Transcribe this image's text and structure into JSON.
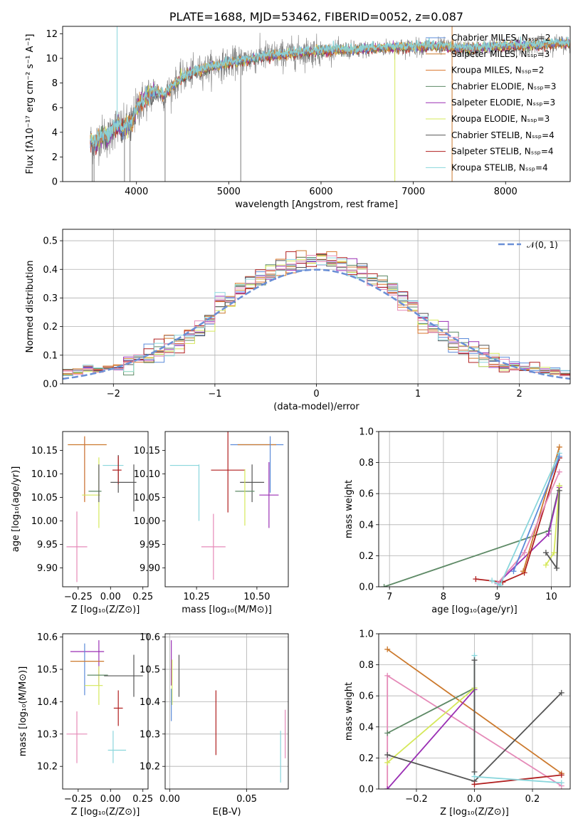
{
  "colors": {
    "chabrier_miles": "#5b8bd9",
    "salpeter_miles": "#cc7a2e",
    "kroupa_miles": "#d9742a",
    "chabrier_elodie": "#5e8a66",
    "salpeter_elodie": "#9a2fb4",
    "kroupa_elodie": "#d5e85a",
    "chabrier_stelib": "#555555",
    "salpeter_stelib": "#b01f1f",
    "kroupa_stelib": "#8ad6dc",
    "pink": "#e58ab8",
    "grid": "#b0b0b0",
    "gauss": "#6a8fd6",
    "spectrum_gray": "#7a7a7a"
  },
  "chart_data": [
    {
      "id": "spectrum",
      "type": "line",
      "title": "PLATE=1688, MJD=53462, FIBERID=0052, z=0.087",
      "xlabel": "wavelength [Angstrom, rest frame]",
      "ylabel": "Flux [fλ10⁻¹⁷ erg cm⁻² s⁻¹ A⁻¹]",
      "xlim": [
        3200,
        8700
      ],
      "ylim": [
        0,
        12.6
      ],
      "xticks": [
        4000,
        5000,
        6000,
        7000,
        8000
      ],
      "yticks": [
        0,
        2,
        4,
        6,
        8,
        10,
        12
      ],
      "grid": false,
      "legend_placement": "right",
      "legend": [
        {
          "label": "Chabrier MILES, N_SSP=2",
          "color_key": "chabrier_miles"
        },
        {
          "label": "Salpeter MILES, N_SSP=3",
          "color_key": "salpeter_miles"
        },
        {
          "label": "Kroupa MILES, N_SSP=2",
          "color_key": "kroupa_miles"
        },
        {
          "label": "Chabrier ELODIE, N_SSP=3",
          "color_key": "chabrier_elodie"
        },
        {
          "label": "Salpeter ELODIE, N_SSP=3",
          "color_key": "salpeter_elodie"
        },
        {
          "label": "Kroupa ELODIE, N_SSP=3",
          "color_key": "kroupa_elodie"
        },
        {
          "label": "Chabrier STELIB, N_SSP=4",
          "color_key": "chabrier_stelib"
        },
        {
          "label": "Salpeter STELIB, N_SSP=4",
          "color_key": "salpeter_stelib"
        },
        {
          "label": "Kroupa STELIB, N_SSP=4",
          "color_key": "kroupa_stelib"
        }
      ],
      "continuum": {
        "x": [
          3500,
          3550,
          3600,
          3650,
          3700,
          3750,
          3800,
          3850,
          3900,
          3950,
          4000,
          4100,
          4200,
          4300,
          4400,
          4500,
          4600,
          4800,
          5000,
          5200,
          5400,
          5600,
          5800,
          6000,
          6200,
          6400,
          6600,
          6800,
          7000,
          7200,
          7400,
          7600,
          7800,
          8000,
          8200,
          8400,
          8600,
          8700
        ],
        "y": [
          3.3,
          3.0,
          3.6,
          3.8,
          3.5,
          4.4,
          4.5,
          4.2,
          4.5,
          4.8,
          5.9,
          6.8,
          7.3,
          7.0,
          7.8,
          8.5,
          8.8,
          9.3,
          9.6,
          9.9,
          10.2,
          10.3,
          10.5,
          10.6,
          10.7,
          10.7,
          10.8,
          10.9,
          10.9,
          11.0,
          10.9,
          10.8,
          10.9,
          11.0,
          11.0,
          11.1,
          11.2,
          11.2
        ]
      },
      "spikes_down": [
        3520,
        3540,
        3870,
        3930,
        4310,
        5130,
        6800,
        7420
      ],
      "spikes_up": [
        3790,
        7420
      ]
    },
    {
      "id": "residuals",
      "type": "line",
      "xlabel": "(data-model)/error",
      "ylabel": "Normed distribution",
      "xlim": [
        -2.5,
        2.5
      ],
      "ylim": [
        0,
        0.54
      ],
      "xticks": [
        -2,
        -1,
        0,
        1,
        2
      ],
      "yticks": [
        0.0,
        0.1,
        0.2,
        0.3,
        0.4,
        0.5
      ],
      "grid": true,
      "legend_placement": "top-right",
      "legend_label": "𝒩(0, 1)",
      "gaussian": {
        "mean": 0,
        "sigma": 1
      },
      "histogram_color_keys": [
        "chabrier_miles",
        "salpeter_miles",
        "kroupa_miles",
        "chabrier_elodie",
        "salpeter_elodie",
        "kroupa_elodie",
        "chabrier_stelib",
        "salpeter_stelib",
        "kroupa_stelib",
        "pink"
      ],
      "bin_width": 0.1
    },
    {
      "id": "age_vs_z",
      "type": "scatter",
      "xlabel": "Z [log₁₀(Z/Z⊙)]",
      "ylabel": "age  [log₁₀(age/yr)]",
      "xlim": [
        -0.37,
        0.29
      ],
      "ylim": [
        9.86,
        10.19
      ],
      "xticks": [
        -0.25,
        0.0,
        0.25
      ],
      "xtick_labels": [
        "−0.25",
        "0.00",
        "0.25"
      ],
      "yticks": [
        9.9,
        9.95,
        10.0,
        10.05,
        10.1,
        10.15
      ],
      "ytick_labels": [
        "9.90",
        "9.95",
        "10.00",
        "10.05",
        "10.10",
        "10.15"
      ],
      "grid": false,
      "points": [
        {
          "x": -0.18,
          "xerr": 0.15,
          "y": 10.162,
          "yerr": 0.0,
          "color_key": "salpeter_miles"
        },
        {
          "x": -0.2,
          "xerr": 0.0,
          "y": 10.11,
          "yerr": 0.068,
          "color_key": "chabrier_miles"
        },
        {
          "x": -0.2,
          "xerr": 0.0,
          "y": 10.11,
          "yerr": 0.07,
          "color_key": "kroupa_miles"
        },
        {
          "x": -0.15,
          "xerr": 0.07,
          "y": 10.055,
          "yerr": 0.0,
          "color_key": "kroupa_elodie"
        },
        {
          "x": -0.09,
          "xerr": 0.0,
          "y": 10.06,
          "yerr": 0.075,
          "color_key": "kroupa_elodie"
        },
        {
          "x": -0.12,
          "xerr": 0.05,
          "y": 10.063,
          "yerr": 0.0,
          "color_key": "chabrier_elodie"
        },
        {
          "x": -0.09,
          "xerr": 0.0,
          "y": 10.08,
          "yerr": 0.04,
          "color_key": "chabrier_stelib"
        },
        {
          "x": 0.02,
          "xerr": 0.08,
          "y": 10.118,
          "yerr": 0.0,
          "color_key": "kroupa_stelib"
        },
        {
          "x": 0.06,
          "xerr": 0.0,
          "y": 10.1,
          "yerr": 0.04,
          "color_key": "chabrier_stelib"
        },
        {
          "x": 0.05,
          "xerr": 0.035,
          "y": 10.108,
          "yerr": 0.0,
          "color_key": "salpeter_stelib"
        },
        {
          "x": 0.06,
          "xerr": 0.0,
          "y": 10.108,
          "yerr": 0.03,
          "color_key": "salpeter_stelib"
        },
        {
          "x": 0.1,
          "xerr": 0.1,
          "y": 10.082,
          "yerr": 0.0,
          "color_key": "chabrier_stelib"
        },
        {
          "x": 0.18,
          "xerr": 0.0,
          "y": 10.07,
          "yerr": 0.05,
          "color_key": "chabrier_stelib"
        },
        {
          "x": -0.26,
          "xerr": 0.08,
          "y": 9.945,
          "yerr": 0.075,
          "color_key": "pink"
        }
      ]
    },
    {
      "id": "age_vs_mass",
      "type": "scatter",
      "xlabel": "mass [log₁₀(M/M⊙)]",
      "ylabel": "",
      "xlim": [
        10.12,
        10.63
      ],
      "ylim": [
        9.86,
        10.19
      ],
      "xticks": [
        10.25,
        10.5
      ],
      "xtick_labels": [
        "10.25",
        "10.50"
      ],
      "yticks": [
        9.9,
        9.95,
        10.0,
        10.05,
        10.1,
        10.15
      ],
      "ytick_labels": [
        "9.90",
        "9.95",
        "10.00",
        "10.05",
        "10.10",
        "10.15"
      ],
      "grid": false,
      "points": [
        {
          "x": 10.5,
          "xerr": 0.11,
          "y": 10.162,
          "yerr": 0.0,
          "color_key": "chabrier_miles"
        },
        {
          "x": 10.5,
          "xerr": 0.08,
          "y": 10.162,
          "yerr": 0.0,
          "color_key": "salpeter_miles"
        },
        {
          "x": 10.555,
          "xerr": 0.0,
          "y": 10.12,
          "yerr": 0.06,
          "color_key": "chabrier_miles"
        },
        {
          "x": 10.2,
          "xerr": 0.06,
          "y": 10.118,
          "yerr": 0.0,
          "color_key": "kroupa_stelib"
        },
        {
          "x": 10.26,
          "xerr": 0.0,
          "y": 10.06,
          "yerr": 0.06,
          "color_key": "kroupa_stelib"
        },
        {
          "x": 10.38,
          "xerr": 0.07,
          "y": 10.108,
          "yerr": 0.0,
          "color_key": "salpeter_stelib"
        },
        {
          "x": 10.38,
          "xerr": 0.0,
          "y": 10.108,
          "yerr": 0.09,
          "color_key": "salpeter_stelib"
        },
        {
          "x": 10.48,
          "xerr": 0.05,
          "y": 10.082,
          "yerr": 0.0,
          "color_key": "chabrier_stelib"
        },
        {
          "x": 10.48,
          "xerr": 0.0,
          "y": 10.08,
          "yerr": 0.04,
          "color_key": "chabrier_stelib"
        },
        {
          "x": 10.45,
          "xerr": 0.04,
          "y": 10.063,
          "yerr": 0.0,
          "color_key": "chabrier_elodie"
        },
        {
          "x": 10.45,
          "xerr": 0.0,
          "y": 10.05,
          "yerr": 0.06,
          "color_key": "kroupa_elodie"
        },
        {
          "x": 10.55,
          "xerr": 0.04,
          "y": 10.055,
          "yerr": 0.0,
          "color_key": "salpeter_elodie"
        },
        {
          "x": 10.55,
          "xerr": 0.0,
          "y": 10.055,
          "yerr": 0.07,
          "color_key": "salpeter_elodie"
        },
        {
          "x": 10.32,
          "xerr": 0.05,
          "y": 9.945,
          "yerr": 0.0,
          "color_key": "pink"
        },
        {
          "x": 10.32,
          "xerr": 0.0,
          "y": 9.945,
          "yerr": 0.07,
          "color_key": "pink"
        }
      ]
    },
    {
      "id": "mass_weight_vs_age",
      "type": "line",
      "xlabel": "age  [log₁₀(age/yr)]",
      "ylabel": "mass weight",
      "xlim": [
        6.8,
        10.35
      ],
      "ylim": [
        0,
        1.0
      ],
      "xticks": [
        7,
        8,
        9,
        10
      ],
      "yticks": [
        0.0,
        0.2,
        0.4,
        0.6,
        0.8,
        1.0
      ],
      "grid": true,
      "series": [
        {
          "color_key": "chabrier_elodie",
          "x": [
            6.9,
            9.95,
            10.15
          ],
          "y": [
            0.0,
            0.36,
            0.65
          ]
        },
        {
          "color_key": "salpeter_elodie",
          "x": [
            9.0,
            9.95,
            10.15
          ],
          "y": [
            0.02,
            0.34,
            0.64
          ]
        },
        {
          "color_key": "kroupa_elodie",
          "x": [
            9.9,
            10.05,
            10.15
          ],
          "y": [
            0.14,
            0.22,
            0.65
          ]
        },
        {
          "color_key": "chabrier_stelib",
          "x": [
            9.9,
            10.1,
            10.15
          ],
          "y": [
            0.22,
            0.12,
            0.62
          ]
        },
        {
          "color_key": "salpeter_stelib",
          "x": [
            8.6,
            9.1,
            9.5,
            10.15
          ],
          "y": [
            0.05,
            0.03,
            0.09,
            0.83
          ]
        },
        {
          "color_key": "salpeter_miles",
          "x": [
            9.48,
            10.15
          ],
          "y": [
            0.1,
            0.9
          ]
        },
        {
          "color_key": "pink",
          "x": [
            9.0,
            9.5,
            10.15
          ],
          "y": [
            0.02,
            0.22,
            0.74
          ]
        },
        {
          "color_key": "kroupa_stelib",
          "x": [
            8.9,
            9.05,
            10.15
          ],
          "y": [
            0.04,
            0.01,
            0.86
          ]
        },
        {
          "color_key": "chabrier_miles",
          "x": [
            9.3,
            10.15
          ],
          "y": [
            0.1,
            0.84
          ]
        }
      ]
    },
    {
      "id": "mass_vs_z",
      "type": "scatter",
      "xlabel": "Z [log₁₀(Z/Z⊙)]",
      "ylabel": "mass [log₁₀(M/M⊙)]",
      "xlim": [
        -0.37,
        0.29
      ],
      "ylim": [
        10.13,
        10.61
      ],
      "xticks": [
        -0.25,
        0.0,
        0.25
      ],
      "xtick_labels": [
        "−0.25",
        "0.00",
        "0.25"
      ],
      "yticks": [
        10.2,
        10.3,
        10.4,
        10.5,
        10.6
      ],
      "ytick_labels": [
        "10.2",
        "10.3",
        "10.4",
        "10.5",
        "10.6"
      ],
      "grid": false,
      "points": [
        {
          "x": -0.18,
          "xerr": 0.13,
          "y": 10.555,
          "yerr": 0.0,
          "color_key": "salpeter_elodie"
        },
        {
          "x": -0.2,
          "xerr": 0.0,
          "y": 10.5,
          "yerr": 0.08,
          "color_key": "chabrier_miles"
        },
        {
          "x": -0.09,
          "xerr": 0.0,
          "y": 10.52,
          "yerr": 0.07,
          "color_key": "salpeter_elodie"
        },
        {
          "x": -0.18,
          "xerr": 0.13,
          "y": 10.525,
          "yerr": 0.0,
          "color_key": "salpeter_miles"
        },
        {
          "x": -0.13,
          "xerr": 0.07,
          "y": 10.45,
          "yerr": 0.0,
          "color_key": "kroupa_elodie"
        },
        {
          "x": -0.09,
          "xerr": 0.0,
          "y": 10.45,
          "yerr": 0.06,
          "color_key": "kroupa_elodie"
        },
        {
          "x": -0.1,
          "xerr": 0.08,
          "y": 10.482,
          "yerr": 0.0,
          "color_key": "chabrier_elodie"
        },
        {
          "x": 0.1,
          "xerr": 0.15,
          "y": 10.48,
          "yerr": 0.0,
          "color_key": "chabrier_stelib"
        },
        {
          "x": 0.18,
          "xerr": 0.0,
          "y": 10.48,
          "yerr": 0.065,
          "color_key": "chabrier_stelib"
        },
        {
          "x": 0.06,
          "xerr": 0.035,
          "y": 10.38,
          "yerr": 0.0,
          "color_key": "salpeter_stelib"
        },
        {
          "x": 0.06,
          "xerr": 0.0,
          "y": 10.38,
          "yerr": 0.055,
          "color_key": "salpeter_stelib"
        },
        {
          "x": 0.05,
          "xerr": 0.07,
          "y": 10.25,
          "yerr": 0.0,
          "color_key": "kroupa_stelib"
        },
        {
          "x": 0.02,
          "xerr": 0.0,
          "y": 10.26,
          "yerr": 0.05,
          "color_key": "kroupa_stelib"
        },
        {
          "x": -0.26,
          "xerr": 0.08,
          "y": 10.3,
          "yerr": 0.0,
          "color_key": "pink"
        },
        {
          "x": -0.26,
          "xerr": 0.0,
          "y": 10.29,
          "yerr": 0.08,
          "color_key": "pink"
        }
      ]
    },
    {
      "id": "mass_vs_ebv",
      "type": "scatter",
      "xlabel": "E(B-V)",
      "ylabel": "",
      "xlim": [
        -0.003,
        0.077
      ],
      "ylim": [
        10.13,
        10.61
      ],
      "xticks": [
        0.0,
        0.05
      ],
      "xtick_labels": [
        "0.00",
        "0.05"
      ],
      "yticks": [
        10.2,
        10.3,
        10.4,
        10.5,
        10.6
      ],
      "ytick_labels": [
        "10.2",
        "10.3",
        "10.4",
        "10.5",
        "10.6"
      ],
      "grid": true,
      "points": [
        {
          "x": 0.001,
          "xerr": 0.0,
          "y": 10.52,
          "yerr": 0.07,
          "color_key": "salpeter_elodie"
        },
        {
          "x": 0.0015,
          "xerr": 0.0,
          "y": 10.46,
          "yerr": 0.07,
          "color_key": "kroupa_elodie"
        },
        {
          "x": 0.001,
          "xerr": 0.0,
          "y": 10.39,
          "yerr": 0.05,
          "color_key": "chabrier_miles"
        },
        {
          "x": 0.006,
          "xerr": 0.0,
          "y": 10.48,
          "yerr": 0.065,
          "color_key": "chabrier_stelib"
        },
        {
          "x": 0.03,
          "xerr": 0.0,
          "y": 10.335,
          "yerr": 0.1,
          "color_key": "salpeter_stelib"
        },
        {
          "x": 0.072,
          "xerr": 0.0,
          "y": 10.23,
          "yerr": 0.08,
          "color_key": "kroupa_stelib"
        },
        {
          "x": 0.075,
          "xerr": 0.0,
          "y": 10.3,
          "yerr": 0.075,
          "color_key": "pink"
        }
      ]
    },
    {
      "id": "mass_weight_vs_z",
      "type": "line",
      "xlabel": "Z [log₁₀(Z/Z⊙)]",
      "ylabel": "mass weight",
      "xlim": [
        -0.33,
        0.33
      ],
      "ylim": [
        0,
        1.0
      ],
      "xticks": [
        -0.2,
        0.0,
        0.2
      ],
      "xtick_labels": [
        "−0.2",
        "0.0",
        "0.2"
      ],
      "yticks": [
        0.0,
        0.2,
        0.4,
        0.6,
        0.8,
        1.0
      ],
      "grid": true,
      "series": [
        {
          "color_key": "salpeter_miles",
          "x": [
            -0.3,
            0.3
          ],
          "y": [
            0.9,
            0.1
          ]
        },
        {
          "color_key": "pink",
          "x": [
            -0.3,
            -0.3,
            0.3
          ],
          "y": [
            0.0,
            0.73,
            0.02
          ]
        },
        {
          "color_key": "chabrier_elodie",
          "x": [
            -0.3,
            0.0
          ],
          "y": [
            0.36,
            0.65
          ]
        },
        {
          "color_key": "salpeter_elodie",
          "x": [
            -0.3,
            0.0
          ],
          "y": [
            0.0,
            0.64
          ]
        },
        {
          "color_key": "kroupa_elodie",
          "x": [
            -0.3,
            0.0
          ],
          "y": [
            0.17,
            0.65
          ]
        },
        {
          "color_key": "chabrier_stelib",
          "x": [
            -0.3,
            0.0,
            0.3
          ],
          "y": [
            0.22,
            0.05,
            0.62
          ]
        },
        {
          "color_key": "salpeter_stelib",
          "x": [
            0.0,
            0.3
          ],
          "y": [
            0.03,
            0.09
          ]
        },
        {
          "color_key": "kroupa_stelib",
          "x": [
            0.0,
            0.0,
            0.3
          ],
          "y": [
            0.86,
            0.08,
            0.04
          ]
        },
        {
          "color_key": "chabrier_stelib",
          "x": [
            0.0,
            0.0
          ],
          "y": [
            0.11,
            0.83
          ]
        }
      ]
    }
  ]
}
